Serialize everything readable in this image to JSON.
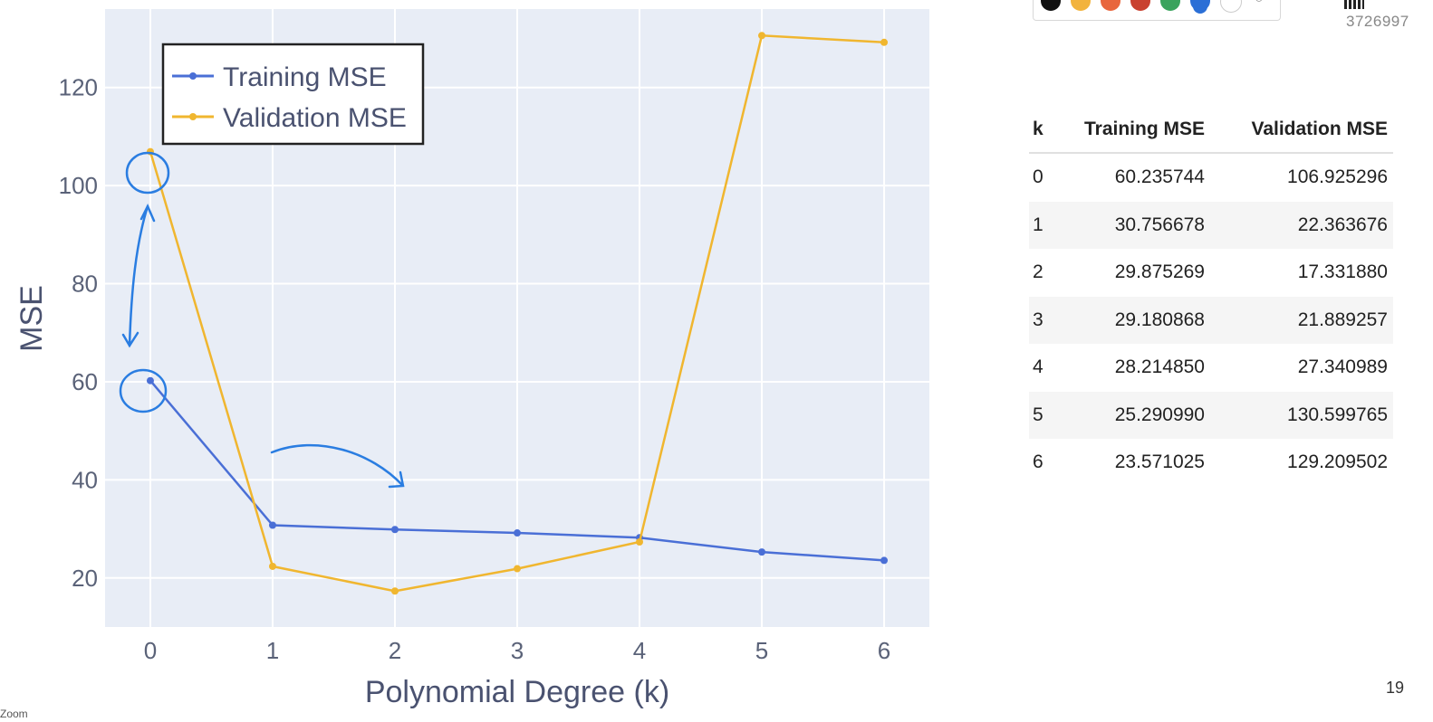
{
  "chart_data": {
    "type": "line",
    "xlabel": "Polynomial Degree (k)",
    "ylabel": "MSE",
    "x": [
      0,
      1,
      2,
      3,
      4,
      5,
      6
    ],
    "xlim": [
      -0.37,
      6.37
    ],
    "ylim": [
      10,
      136
    ],
    "yticks": [
      20,
      40,
      60,
      80,
      100,
      120
    ],
    "grid": true,
    "legend_position": "top-left",
    "series": [
      {
        "name": "Training MSE",
        "color": "#4a6fd6",
        "values": [
          60.235744,
          30.756678,
          29.875269,
          29.180868,
          28.21485,
          25.29099,
          23.571025
        ]
      },
      {
        "name": "Validation MSE",
        "color": "#f0b62f",
        "values": [
          106.925296,
          22.363676,
          17.33188,
          21.889257,
          27.340989,
          130.599765,
          129.209502
        ]
      }
    ]
  },
  "table": {
    "headers": [
      "k",
      "Training MSE",
      "Validation MSE"
    ],
    "rows": [
      [
        "0",
        "60.235744",
        "106.925296"
      ],
      [
        "1",
        "30.756678",
        "22.363676"
      ],
      [
        "2",
        "29.875269",
        "17.331880"
      ],
      [
        "3",
        "29.180868",
        "21.889257"
      ],
      [
        "4",
        "28.214850",
        "27.340989"
      ],
      [
        "5",
        "25.290990",
        "130.599765"
      ],
      [
        "6",
        "23.571025",
        "129.209502"
      ]
    ]
  },
  "toolbar": {
    "colors": [
      "#111111",
      "#f2b33d",
      "#e8663d",
      "#c9412f",
      "#3aa35d",
      "#2b6fd6",
      "#ffffff"
    ],
    "selected_index": 5
  },
  "meeting_id": "3726997",
  "page_number": "19",
  "corner_label": "Zoom"
}
